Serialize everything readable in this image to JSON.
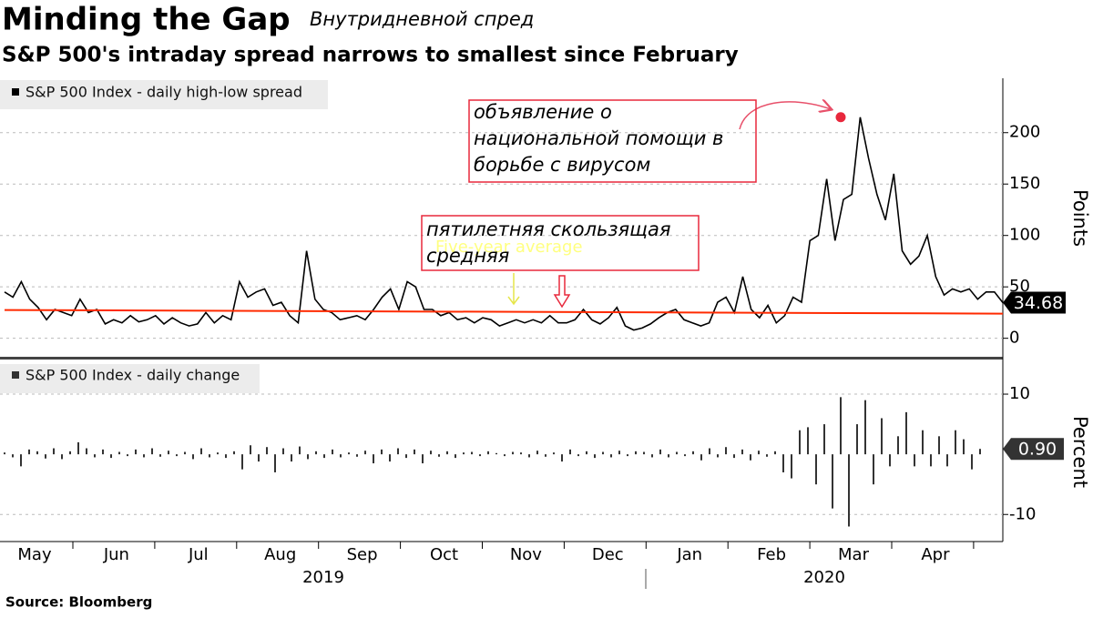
{
  "title": "Minding the Gap",
  "subtitle": "Внутридневной спред",
  "headline": "S&P 500's intraday spread narrows to smallest since February",
  "source": "Source: Bloomberg",
  "chart_data": [
    {
      "type": "line",
      "y_label": "Points",
      "ylim": [
        -18,
        252
      ],
      "yticks": [
        0,
        50,
        100,
        150,
        200
      ],
      "series": [
        {
          "name": "S&P 500 Index - daily high-low spread",
          "color": "#000000",
          "values": [
            45,
            40,
            55,
            38,
            30,
            18,
            28,
            25,
            22,
            38,
            25,
            28,
            14,
            18,
            15,
            22,
            16,
            18,
            22,
            14,
            20,
            15,
            12,
            14,
            25,
            15,
            22,
            18,
            55,
            40,
            45,
            48,
            32,
            35,
            22,
            15,
            85,
            38,
            28,
            25,
            18,
            20,
            22,
            18,
            28,
            40,
            48,
            28,
            55,
            50,
            28,
            28,
            22,
            25,
            18,
            20,
            15,
            20,
            18,
            12,
            15,
            18,
            15,
            18,
            15,
            22,
            15,
            15,
            18,
            28,
            18,
            14,
            20,
            30,
            12,
            8,
            10,
            14,
            20,
            25,
            28,
            18,
            15,
            12,
            15,
            35,
            40,
            25,
            60,
            28,
            20,
            32,
            15,
            22,
            40,
            35,
            95,
            100,
            155,
            95,
            135,
            140,
            215,
            175,
            140,
            115,
            160,
            85,
            72,
            80,
            100,
            60,
            42,
            48,
            45,
            48,
            38,
            45,
            45,
            34.68
          ]
        },
        {
          "color": "#ff2a00",
          "values": [
            27.5,
            24
          ]
        }
      ],
      "annotations": [
        {
          "lines": [
            "объявление о",
            "национальной помощи в",
            "борьбе с вирусом"
          ],
          "color": "#e8283c"
        },
        {
          "lines": [
            "пятилетняя скользящая",
            "средняя"
          ],
          "color": "#e8283c"
        },
        {
          "lines": [
            "Five-year average"
          ],
          "color": "#ffff80"
        }
      ]
    },
    {
      "type": "bar",
      "y_label": "Percent",
      "ylim": [
        -14.5,
        15.3
      ],
      "yticks": [
        -10,
        10
      ],
      "months": [
        "May",
        "Jun",
        "Jul",
        "Aug",
        "Sep",
        "Oct",
        "Nov",
        "Dec",
        "Jan",
        "Feb",
        "Mar",
        "Apr"
      ],
      "years": [
        "2019",
        "2020"
      ],
      "series": [
        {
          "name": "S&P 500 Index - daily change",
          "color": "#333333",
          "values": [
            0.3,
            -0.5,
            -2,
            0.8,
            0.5,
            -0.7,
            1.0,
            -0.8,
            0.5,
            2.0,
            1.0,
            -0.5,
            0.8,
            -0.6,
            0.4,
            -0.3,
            0.8,
            -0.5,
            1.0,
            -0.4,
            0.6,
            -0.3,
            0.4,
            -0.8,
            1.0,
            -0.5,
            0.3,
            -0.6,
            0.5,
            -2.5,
            1.5,
            -1.2,
            1.2,
            -3.0,
            1.0,
            -1.2,
            1.3,
            -0.8,
            0.5,
            -0.6,
            0.8,
            -0.5,
            0.3,
            -0.4,
            0.6,
            -1.5,
            0.8,
            -1.2,
            1.0,
            -0.6,
            0.8,
            -1.5,
            0.6,
            -0.4,
            0.5,
            -0.6,
            0.3,
            0.4,
            -0.3,
            0.5,
            0.2,
            -0.3,
            0.4,
            0.3,
            -0.5,
            0.6,
            -0.4,
            0.3,
            -1.2,
            0.8,
            -0.3,
            0.5,
            -0.6,
            0.4,
            -0.5,
            0.6,
            -0.3,
            0.5,
            0.4,
            -0.5,
            0.8,
            -0.5,
            0.4,
            -0.3,
            0.5,
            -1.0,
            1.0,
            -0.5,
            1.2,
            -0.6,
            0.8,
            -1.0,
            0.6,
            -0.4,
            0.5,
            -3.0,
            -4.0,
            4.0,
            4.5,
            -5.0,
            5.0,
            -9.0,
            9.5,
            -12.0,
            5.0,
            9.0,
            -5.0,
            6.0,
            -2.0,
            3.0,
            7.0,
            -2.0,
            4.0,
            -2.0,
            3.0,
            -2.0,
            4.0,
            2.5,
            -2.5,
            0.9
          ],
          "value_labels": [
            null,
            null,
            null,
            null,
            null,
            null,
            null,
            null,
            null,
            null,
            null,
            null,
            null,
            null,
            null,
            null,
            null,
            null,
            null,
            null,
            null,
            null,
            null,
            null,
            null,
            null,
            null,
            null,
            null,
            null,
            null,
            null,
            null,
            null,
            null,
            null,
            null,
            null,
            null,
            null,
            null,
            null,
            null,
            null,
            null,
            null,
            null,
            null,
            null,
            null,
            null,
            null,
            null,
            null,
            null,
            null,
            null,
            null,
            null,
            null,
            null,
            null,
            null,
            null,
            null,
            null,
            null,
            null,
            null,
            null,
            null,
            null,
            null,
            null,
            null,
            null,
            null,
            null,
            null,
            null,
            null,
            null,
            null,
            null,
            null,
            null,
            null,
            null,
            null,
            null,
            null,
            null,
            null,
            null,
            null,
            null,
            null,
            null,
            null,
            null,
            null,
            null,
            null,
            null,
            null,
            null,
            null,
            null,
            null,
            null,
            null,
            null,
            null,
            null,
            null,
            null,
            null,
            null,
            null,
            "0.90"
          ]
        }
      ]
    }
  ]
}
